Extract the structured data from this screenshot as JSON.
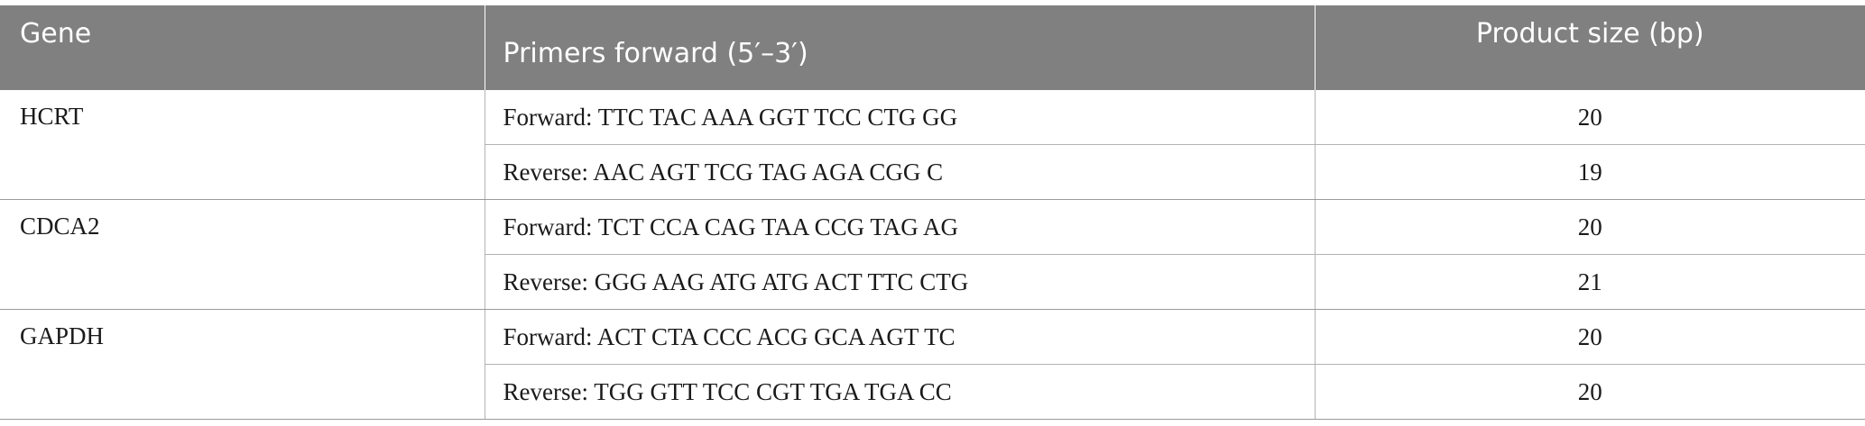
{
  "table": {
    "headers": {
      "gene": "Gene",
      "primers": "Primers forward (5′–3′)",
      "size": "Product size (bp)"
    },
    "groups": [
      {
        "gene": "HCRT",
        "rows": [
          {
            "primer": "Forward: TTC TAC AAA GGT TCC CTG GG",
            "size": "20"
          },
          {
            "primer": "Reverse: AAC AGT TCG TAG AGA CGG C",
            "size": "19"
          }
        ]
      },
      {
        "gene": "CDCA2",
        "rows": [
          {
            "primer": "Forward: TCT CCA CAG TAA CCG TAG AG",
            "size": "20"
          },
          {
            "primer": "Reverse: GGG AAG ATG ATG ACT TTC CTG",
            "size": "21"
          }
        ]
      },
      {
        "gene": "GAPDH",
        "rows": [
          {
            "primer": "Forward: ACT CTA CCC ACG GCA AGT TC",
            "size": "20"
          },
          {
            "primer": "Reverse: TGG GTT TCC CGT TGA TGA CC",
            "size": "20"
          }
        ]
      }
    ]
  }
}
